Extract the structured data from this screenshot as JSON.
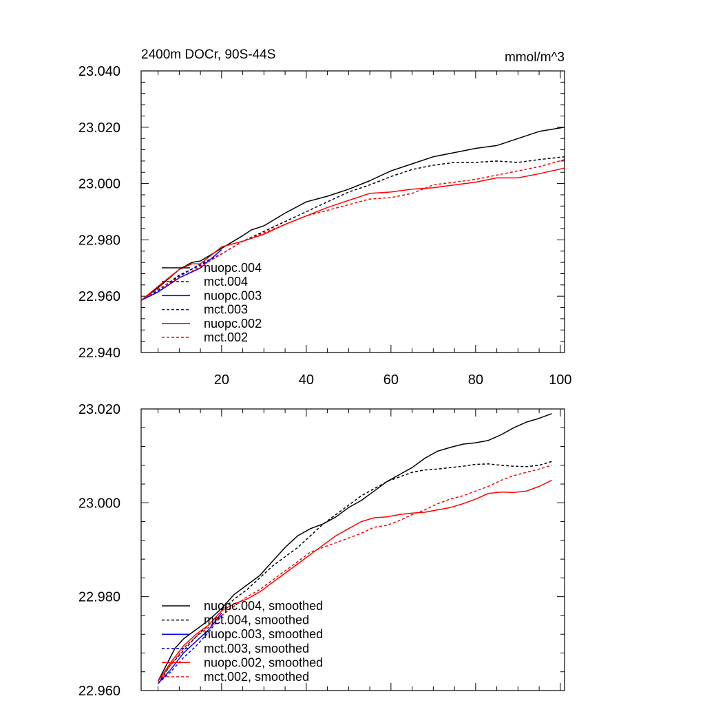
{
  "colors": {
    "nuopc.004": "#000000",
    "mct.004": "#000000",
    "nuopc.003": "#0000ff",
    "mct.003": "#0000ff",
    "nuopc.002": "#ff0000",
    "mct.002": "#ff0000"
  },
  "chart_data": [
    {
      "type": "line",
      "title": "2400m DOCr, 90S-44S",
      "units": "mmol/m^3",
      "xlim": [
        1,
        101
      ],
      "ylim": [
        22.94,
        23.04
      ],
      "xticks": [
        "20",
        "40",
        "60",
        "80",
        "100"
      ],
      "xtick_values": [
        20,
        40,
        60,
        80,
        100
      ],
      "yticks": [
        "22.940",
        "22.960",
        "22.980",
        "23.000",
        "23.020",
        "23.040"
      ],
      "ytick_values": [
        22.94,
        22.96,
        22.98,
        23.0,
        23.02,
        23.04
      ],
      "legend_position": "bottom-left",
      "series": [
        {
          "name": "nuopc.004",
          "label": "nuopc.004",
          "color": "#000000",
          "dash": false,
          "x": [
            1,
            5,
            10,
            13,
            15,
            20,
            25,
            27,
            30,
            35,
            40,
            45,
            50,
            55,
            60,
            65,
            70,
            75,
            80,
            85,
            90,
            95,
            101
          ],
          "y": [
            22.9585,
            22.963,
            22.9695,
            22.972,
            22.9725,
            22.977,
            22.9815,
            22.9835,
            22.985,
            22.9895,
            22.9935,
            22.9955,
            22.998,
            23.001,
            23.0045,
            23.007,
            23.0095,
            23.011,
            23.0125,
            23.0135,
            23.016,
            23.0185,
            23.02
          ]
        },
        {
          "name": "mct.004",
          "label": "mct.004",
          "color": "#000000",
          "dash": true,
          "x": [
            1,
            5,
            10,
            15,
            20,
            25,
            30,
            35,
            40,
            45,
            50,
            55,
            60,
            65,
            70,
            75,
            80,
            85,
            90,
            95,
            101
          ],
          "y": [
            22.9585,
            22.962,
            22.9675,
            22.971,
            22.975,
            22.9795,
            22.983,
            22.9865,
            22.99,
            22.9935,
            22.997,
            22.9995,
            23.0025,
            23.005,
            23.0065,
            23.0075,
            23.0075,
            23.008,
            23.0075,
            23.0085,
            23.0095
          ]
        },
        {
          "name": "nuopc.003",
          "label": "nuopc.003",
          "color": "#0000ff",
          "dash": false,
          "x": [
            1,
            5,
            10,
            15,
            20
          ],
          "y": [
            22.9585,
            22.9615,
            22.9665,
            22.97,
            22.9765
          ]
        },
        {
          "name": "mct.003",
          "label": "mct.003",
          "color": "#0000ff",
          "dash": true,
          "x": [
            1,
            5,
            10,
            15,
            20
          ],
          "y": [
            22.9585,
            22.962,
            22.967,
            22.9715,
            22.975
          ]
        },
        {
          "name": "nuopc.002",
          "label": "nuopc.002",
          "color": "#ff0000",
          "dash": false,
          "x": [
            1,
            5,
            10,
            13,
            15,
            20,
            25,
            30,
            35,
            40,
            45,
            50,
            55,
            60,
            65,
            70,
            75,
            80,
            85,
            90,
            95,
            101
          ],
          "y": [
            22.9585,
            22.9635,
            22.9695,
            22.9715,
            22.9715,
            22.9775,
            22.9795,
            22.982,
            22.9855,
            22.9885,
            22.9915,
            22.994,
            22.9965,
            22.997,
            22.998,
            22.9985,
            22.9995,
            23.0005,
            23.002,
            23.002,
            23.0035,
            23.0055
          ]
        },
        {
          "name": "mct.002",
          "label": "mct.002",
          "color": "#ff0000",
          "dash": true,
          "x": [
            1,
            5,
            10,
            15,
            20,
            25,
            30,
            35,
            40,
            45,
            50,
            55,
            60,
            65,
            70,
            75,
            80,
            85,
            90,
            95,
            101
          ],
          "y": [
            22.9585,
            22.9625,
            22.9665,
            22.9705,
            22.975,
            22.9795,
            22.9825,
            22.9855,
            22.9885,
            22.9905,
            22.9925,
            22.9945,
            22.995,
            22.9965,
            22.9995,
            23.0005,
            23.0015,
            23.003,
            23.0045,
            23.006,
            23.0085
          ]
        }
      ]
    },
    {
      "type": "line",
      "ylim": [
        22.96,
        23.02
      ],
      "xlim": [
        1,
        101
      ],
      "yticks": [
        "22.960",
        "22.980",
        "23.000",
        "23.020"
      ],
      "ytick_values": [
        22.96,
        22.98,
        23.0,
        23.02
      ],
      "xtick_values": [
        20,
        40,
        60,
        80,
        100
      ],
      "legend_position": "bottom-left",
      "series": [
        {
          "name": "nuopc.004",
          "label": "nuopc.004, smoothed",
          "color": "#000000",
          "dash": false,
          "x": [
            5,
            7,
            9,
            11,
            14,
            17,
            20,
            23,
            26,
            29,
            32,
            35,
            38,
            41,
            44,
            47,
            50,
            53,
            56,
            59,
            62,
            65,
            68,
            71,
            74,
            77,
            80,
            83,
            86,
            89,
            92,
            95,
            98
          ],
          "y": [
            22.962,
            22.9655,
            22.969,
            22.971,
            22.973,
            22.975,
            22.9775,
            22.9805,
            22.9825,
            22.9845,
            22.9875,
            22.9905,
            22.993,
            22.9945,
            22.9955,
            22.997,
            22.999,
            23.0005,
            23.0025,
            23.0045,
            23.006,
            23.0075,
            23.0095,
            23.011,
            23.0118,
            23.0125,
            23.0128,
            23.0133,
            23.0145,
            23.016,
            23.0172,
            23.018,
            23.019
          ]
        },
        {
          "name": "mct.004",
          "label": "mct.004, smoothed",
          "color": "#000000",
          "dash": true,
          "x": [
            5,
            8,
            11,
            14,
            17,
            20,
            23,
            26,
            29,
            32,
            35,
            38,
            41,
            44,
            47,
            50,
            53,
            56,
            59,
            62,
            65,
            68,
            71,
            74,
            77,
            80,
            83,
            86,
            89,
            92,
            95,
            98
          ],
          "y": [
            22.9615,
            22.9655,
            22.9685,
            22.9715,
            22.974,
            22.977,
            22.9795,
            22.9815,
            22.984,
            22.9865,
            22.9885,
            22.9905,
            22.993,
            22.9955,
            22.9975,
            22.9995,
            23.0015,
            23.003,
            23.0045,
            23.0055,
            23.0065,
            23.007,
            23.0072,
            23.0075,
            23.0078,
            23.0082,
            23.0083,
            23.008,
            23.0078,
            23.0077,
            23.008,
            23.0088
          ]
        },
        {
          "name": "nuopc.003",
          "label": "nuopc.003, smoothed",
          "color": "#0000ff",
          "dash": false,
          "x": [
            5,
            8,
            11,
            14,
            17,
            20
          ],
          "y": [
            22.9615,
            22.9645,
            22.968,
            22.9705,
            22.973,
            22.9765
          ]
        },
        {
          "name": "mct.003",
          "label": "mct.003, smoothed",
          "color": "#0000ff",
          "dash": true,
          "x": [
            5,
            8,
            11,
            14,
            17,
            20
          ],
          "y": [
            22.9615,
            22.964,
            22.967,
            22.9695,
            22.9725,
            22.976
          ]
        },
        {
          "name": "nuopc.002",
          "label": "nuopc.002, smoothed",
          "color": "#ff0000",
          "dash": false,
          "x": [
            5,
            8,
            11,
            14,
            17,
            20,
            23,
            26,
            29,
            32,
            35,
            38,
            41,
            44,
            47,
            50,
            53,
            56,
            59,
            62,
            65,
            68,
            71,
            74,
            77,
            80,
            83,
            86,
            89,
            92,
            95,
            98
          ],
          "y": [
            22.962,
            22.966,
            22.9695,
            22.972,
            22.974,
            22.977,
            22.9785,
            22.9795,
            22.981,
            22.983,
            22.985,
            22.987,
            22.989,
            22.991,
            22.993,
            22.9945,
            22.996,
            22.9968,
            22.997,
            22.9975,
            22.9978,
            22.998,
            22.9985,
            22.999,
            22.9998,
            23.0008,
            23.002,
            23.0023,
            23.0022,
            23.0025,
            23.0035,
            23.0048
          ]
        },
        {
          "name": "mct.002",
          "label": "mct.002, smoothed",
          "color": "#ff0000",
          "dash": true,
          "x": [
            5,
            8,
            11,
            14,
            17,
            20,
            23,
            26,
            29,
            32,
            35,
            38,
            41,
            44,
            47,
            50,
            53,
            56,
            59,
            62,
            65,
            68,
            71,
            74,
            77,
            80,
            83,
            86,
            89,
            92,
            95,
            98
          ],
          "y": [
            22.962,
            22.9655,
            22.969,
            22.9715,
            22.9735,
            22.976,
            22.978,
            22.98,
            22.9815,
            22.9835,
            22.9855,
            22.9875,
            22.9895,
            22.9905,
            22.9915,
            22.9925,
            22.9935,
            22.9948,
            22.9952,
            22.9962,
            22.9975,
            22.9985,
            22.9998,
            23.0008,
            23.0015,
            23.0025,
            23.0035,
            23.0048,
            23.0058,
            23.0065,
            23.0072,
            23.008
          ]
        }
      ]
    }
  ]
}
